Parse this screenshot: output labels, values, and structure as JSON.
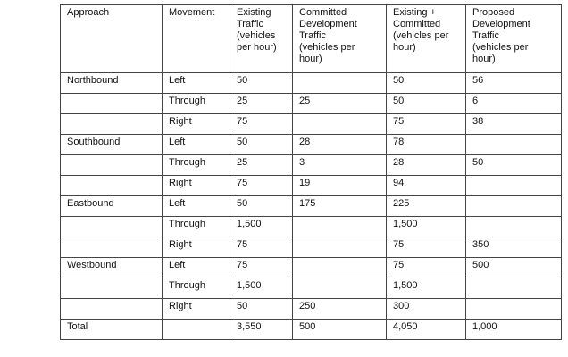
{
  "table": {
    "headers": [
      "Approach",
      "Movement",
      "Existing\nTraffic\n(vehicles\nper hour)",
      "Committed\nDevelopment\nTraffic\n(vehicles per\nhour)",
      "Existing +\nCommitted\n (vehicles per\nhour)",
      "Proposed\nDevelopment\nTraffic\n(vehicles per\nhour)"
    ],
    "rows": [
      [
        "Northbound",
        "Left",
        "50",
        "",
        "50",
        "56"
      ],
      [
        "",
        "Through",
        "25",
        "25",
        "50",
        "6"
      ],
      [
        "",
        "Right",
        "75",
        "",
        "75",
        "38"
      ],
      [
        "Southbound",
        "Left",
        "50",
        "28",
        "78",
        ""
      ],
      [
        "",
        "Through",
        "25",
        "3",
        "28",
        "50"
      ],
      [
        "",
        "Right",
        "75",
        "19",
        "94",
        ""
      ],
      [
        "Eastbound",
        "Left",
        "50",
        "175",
        "225",
        ""
      ],
      [
        "",
        "Through",
        "1,500",
        "",
        "1,500",
        ""
      ],
      [
        "",
        "Right",
        "75",
        "",
        "75",
        "350"
      ],
      [
        "Westbound",
        "Left",
        "75",
        "",
        "75",
        "500"
      ],
      [
        "",
        "Through",
        "1,500",
        "",
        "1,500",
        ""
      ],
      [
        "",
        "Right",
        "50",
        "250",
        "300",
        ""
      ],
      [
        "Total",
        "",
        "3,550",
        "500",
        "4,050",
        "1,000"
      ]
    ]
  }
}
